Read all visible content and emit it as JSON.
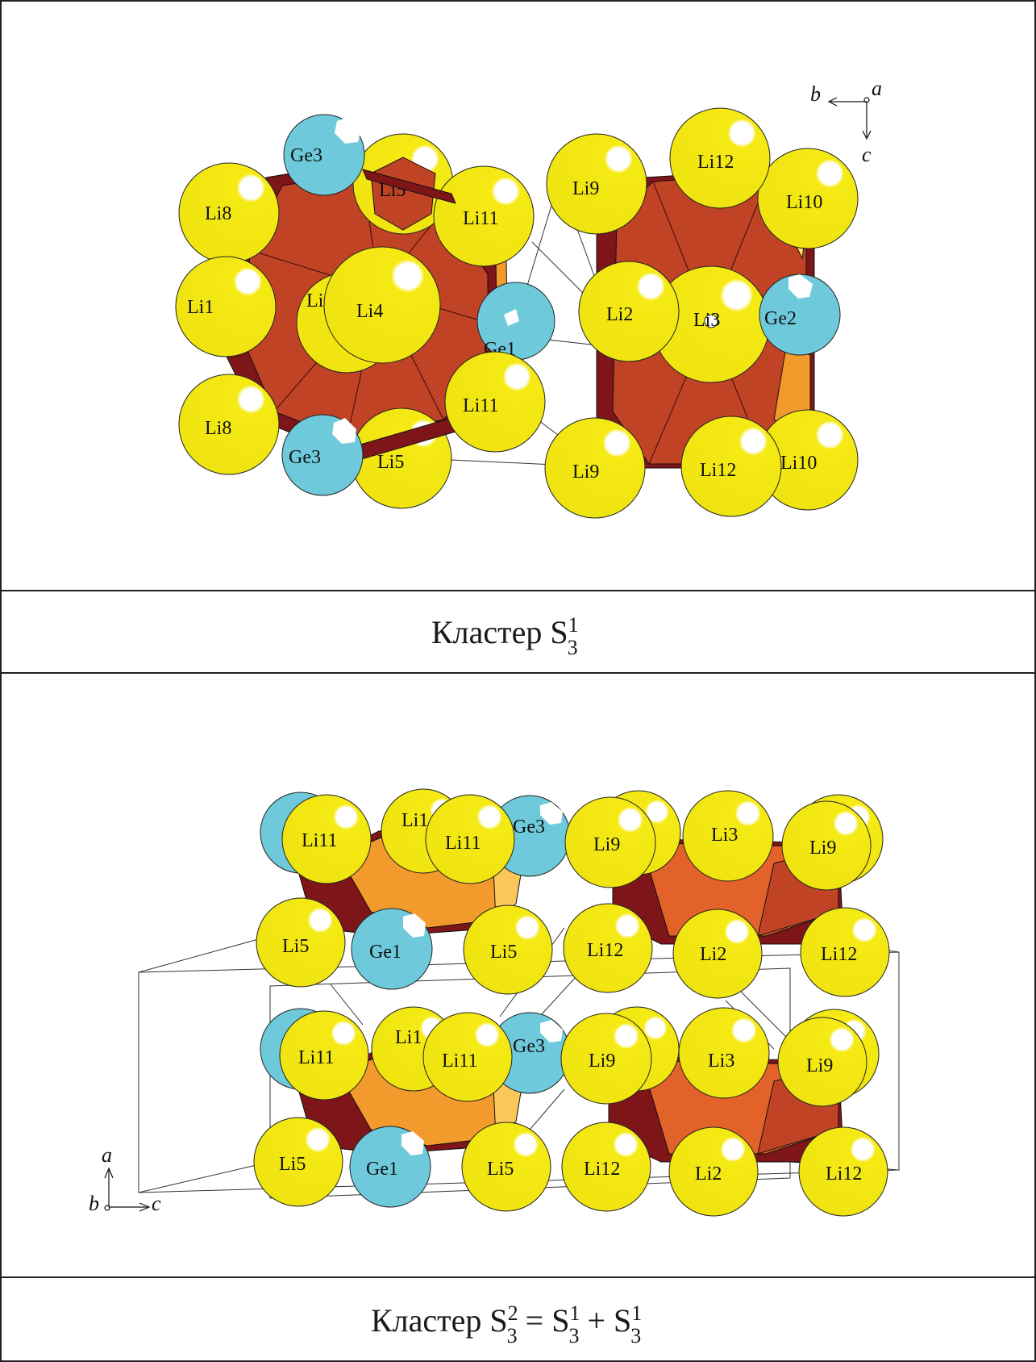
{
  "colors": {
    "li_atom": "#f5ea14",
    "ge_atom": "#6ecadb",
    "polyhedron_dark": "#7e1518",
    "polyhedron_mid": "#c04326",
    "polyhedron_orange": "#f39a2c",
    "polyhedron_light": "#fde36a",
    "frame": "#222222"
  },
  "panel_top": {
    "caption": {
      "prefix": "Кластер S",
      "sub": "3",
      "sup": "1"
    },
    "axes": {
      "horizontal": "b",
      "vertical": "c",
      "depth": "a"
    },
    "atoms": [
      {
        "label": "Li8",
        "element": "Li"
      },
      {
        "label": "Ge3",
        "element": "Ge"
      },
      {
        "label": "Li5",
        "element": "Li"
      },
      {
        "label": "Li11",
        "element": "Li"
      },
      {
        "label": "Li1",
        "element": "Li"
      },
      {
        "label": "Li",
        "element": "Li"
      },
      {
        "label": "Li4",
        "element": "Li"
      },
      {
        "label": "Ge1",
        "element": "Ge"
      },
      {
        "label": "Li11",
        "element": "Li"
      },
      {
        "label": "Li8",
        "element": "Li"
      },
      {
        "label": "Ge3",
        "element": "Ge"
      },
      {
        "label": "Li5",
        "element": "Li"
      },
      {
        "label": "Li9",
        "element": "Li"
      },
      {
        "label": "Li12",
        "element": "Li"
      },
      {
        "label": "Li10",
        "element": "Li"
      },
      {
        "label": "Li2",
        "element": "Li"
      },
      {
        "label": "Li3",
        "element": "Li"
      },
      {
        "label": "Ge2",
        "element": "Ge"
      },
      {
        "label": "Li9",
        "element": "Li"
      },
      {
        "label": "Li12",
        "element": "Li"
      },
      {
        "label": "Li10",
        "element": "Li"
      }
    ]
  },
  "panel_bottom": {
    "caption": {
      "prefix": "Кластер S",
      "sub1": "3",
      "sup1": "2",
      "eq": " = S",
      "sub2": "3",
      "sup2": "1",
      "plus": " + S",
      "sub3": "3",
      "sup3": "1"
    },
    "axes": {
      "vertical": "a",
      "horizontal": "c",
      "depth": "b"
    },
    "atoms": [
      {
        "label": "Li11",
        "element": "Li"
      },
      {
        "label": "Li1",
        "element": "Li"
      },
      {
        "label": "Li11",
        "element": "Li"
      },
      {
        "label": "Ge3",
        "element": "Ge"
      },
      {
        "label": "Li9",
        "element": "Li"
      },
      {
        "label": "Li3",
        "element": "Li"
      },
      {
        "label": "Li9",
        "element": "Li"
      },
      {
        "label": "Li5",
        "element": "Li"
      },
      {
        "label": "Ge1",
        "element": "Ge"
      },
      {
        "label": "Li5",
        "element": "Li"
      },
      {
        "label": "Li12",
        "element": "Li"
      },
      {
        "label": "Li2",
        "element": "Li"
      },
      {
        "label": "Li12",
        "element": "Li"
      },
      {
        "label": "Li11",
        "element": "Li"
      },
      {
        "label": "Li1",
        "element": "Li"
      },
      {
        "label": "Li11",
        "element": "Li"
      },
      {
        "label": "Ge3",
        "element": "Ge"
      },
      {
        "label": "Li9",
        "element": "Li"
      },
      {
        "label": "Li3",
        "element": "Li"
      },
      {
        "label": "Li9",
        "element": "Li"
      },
      {
        "label": "Li5",
        "element": "Li"
      },
      {
        "label": "Ge1",
        "element": "Ge"
      },
      {
        "label": "Li5",
        "element": "Li"
      },
      {
        "label": "Li12",
        "element": "Li"
      },
      {
        "label": "Li2",
        "element": "Li"
      },
      {
        "label": "Li12",
        "element": "Li"
      }
    ]
  }
}
